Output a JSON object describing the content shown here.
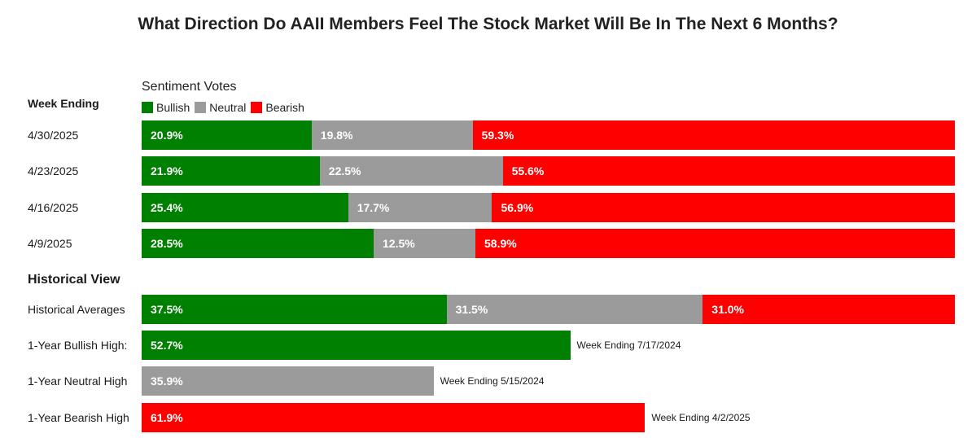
{
  "chart_data": {
    "type": "bar",
    "orientation": "horizontal",
    "stacked": true,
    "title": "What Direction Do AAII Members Feel The Stock Market Will Be In The Next 6 Months?",
    "legend_title": "Sentiment Votes",
    "legend_placement": "top-left",
    "series": [
      {
        "name": "Bullish",
        "color": "#008000"
      },
      {
        "name": "Neutral",
        "color": "#9b9b9b"
      },
      {
        "name": "Bearish",
        "color": "#ff0000"
      }
    ],
    "weekly": {
      "header": "Week Ending",
      "rows": [
        {
          "label": "4/30/2025",
          "values": [
            20.9,
            19.8,
            59.3
          ],
          "texts": [
            "20.9%",
            "19.8%",
            "59.3%"
          ]
        },
        {
          "label": "4/23/2025",
          "values": [
            21.9,
            22.5,
            55.6
          ],
          "texts": [
            "21.9%",
            "22.5%",
            "55.6%"
          ]
        },
        {
          "label": "4/16/2025",
          "values": [
            25.4,
            17.7,
            56.9
          ],
          "texts": [
            "25.4%",
            "17.7%",
            "56.9%"
          ]
        },
        {
          "label": "4/9/2025",
          "values": [
            28.5,
            12.5,
            58.9
          ],
          "texts": [
            "28.5%",
            "12.5%",
            "58.9%"
          ]
        }
      ]
    },
    "historical": {
      "header": "Historical View",
      "averages": {
        "label": "Historical Averages",
        "values": [
          37.5,
          31.5,
          31.0
        ],
        "texts": [
          "37.5%",
          "31.5%",
          "31.0%"
        ]
      },
      "highs": [
        {
          "label": "1-Year Bullish High:",
          "series": 0,
          "value": 52.7,
          "text": "52.7%",
          "note": "Week Ending 7/17/2024"
        },
        {
          "label": "1-Year Neutral High",
          "series": 1,
          "value": 35.9,
          "text": "35.9%",
          "note": "Week Ending 5/15/2024"
        },
        {
          "label": "1-Year Bearish High",
          "series": 2,
          "value": 61.9,
          "text": "61.9%",
          "note": "Week Ending 4/2/2025"
        }
      ]
    }
  }
}
